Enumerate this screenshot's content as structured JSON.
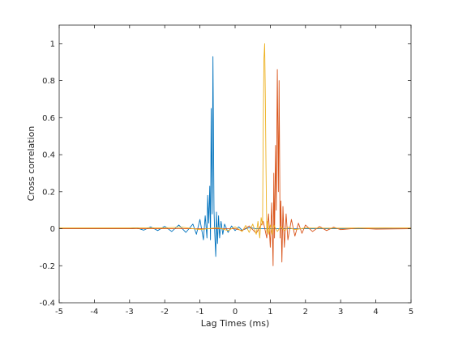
{
  "chart_data": {
    "type": "line",
    "title": "",
    "xlabel": "Lag Times (ms)",
    "ylabel": "Cross correlation",
    "xlim": [
      -5,
      5
    ],
    "ylim": [
      -0.4,
      1.1
    ],
    "xticks": [
      "-5",
      "-4",
      "-3",
      "-2",
      "-1",
      "0",
      "1",
      "2",
      "3",
      "4",
      "5"
    ],
    "yticks": [
      "-0.4",
      "-0.2",
      "0",
      "0.2",
      "0.4",
      "0.6",
      "0.8",
      "1"
    ],
    "grid": false,
    "box": true,
    "series_colors": [
      "#0072BD",
      "#D95319",
      "#EDB120"
    ],
    "series": [
      {
        "x": [
          -5,
          -3.0,
          -2.8,
          -2.6,
          -2.4,
          -2.2,
          -2.0,
          -1.8,
          -1.6,
          -1.4,
          -1.2,
          -1.1,
          -1.0,
          -0.9,
          -0.85,
          -0.8,
          -0.78,
          -0.75,
          -0.72,
          -0.7,
          -0.68,
          -0.65,
          -0.63,
          -0.6,
          -0.58,
          -0.55,
          -0.53,
          -0.5,
          -0.47,
          -0.44,
          -0.4,
          -0.35,
          -0.3,
          -0.2,
          -0.1,
          0.0,
          0.1,
          0.2,
          0.4,
          0.6,
          0.8,
          1.0,
          1.2,
          1.5,
          2.0,
          2.5,
          3.0,
          3.5,
          4.0,
          5
        ],
        "y": [
          0,
          0,
          0.005,
          -0.008,
          0.01,
          -0.01,
          0.013,
          -0.015,
          0.02,
          -0.02,
          0.025,
          -0.03,
          0.05,
          -0.06,
          0.07,
          -0.05,
          0.18,
          0.03,
          0.23,
          -0.06,
          0.65,
          0.08,
          0.93,
          0.1,
          -0.02,
          -0.15,
          0.09,
          -0.08,
          0.07,
          -0.05,
          0.04,
          -0.03,
          0.025,
          -0.02,
          0.015,
          -0.01,
          0.01,
          -0.008,
          0.006,
          0,
          0,
          0,
          0,
          0,
          0,
          0,
          0,
          0,
          0,
          0
        ]
      },
      {
        "x": [
          -5,
          0.0,
          0.2,
          0.4,
          0.6,
          0.8,
          0.9,
          0.95,
          1.0,
          1.04,
          1.08,
          1.1,
          1.12,
          1.15,
          1.17,
          1.2,
          1.23,
          1.25,
          1.28,
          1.3,
          1.33,
          1.36,
          1.4,
          1.45,
          1.5,
          1.6,
          1.7,
          1.8,
          1.9,
          2.0,
          2.2,
          2.4,
          2.6,
          2.8,
          3.0,
          3.5,
          4.0,
          5
        ],
        "y": [
          0,
          0,
          -0.01,
          0.015,
          -0.025,
          0.04,
          -0.05,
          0.08,
          -0.1,
          0.14,
          -0.2,
          0.3,
          -0.05,
          0.45,
          0.1,
          0.86,
          0.2,
          0.8,
          -0.05,
          0.15,
          -0.18,
          0.12,
          -0.1,
          0.08,
          -0.06,
          0.05,
          -0.04,
          0.03,
          -0.025,
          0.02,
          -0.015,
          0.012,
          -0.01,
          0.008,
          -0.005,
          0.003,
          -0.002,
          0
        ]
      },
      {
        "x": [
          -5,
          -2.0,
          -1.5,
          -1.0,
          -0.5,
          -0.2,
          0.0,
          0.2,
          0.3,
          0.4,
          0.5,
          0.6,
          0.65,
          0.7,
          0.74,
          0.78,
          0.8,
          0.82,
          0.84,
          0.86,
          0.88,
          0.9,
          0.92,
          0.95,
          1.0,
          1.05,
          1.1,
          1.2,
          1.3,
          1.4,
          1.5,
          1.7,
          2.0,
          2.5,
          3.0,
          3.5,
          4.0,
          4.5,
          5
        ],
        "y": [
          0.005,
          0.005,
          0.008,
          -0.005,
          0.006,
          -0.01,
          0.01,
          -0.015,
          0.018,
          -0.02,
          0.025,
          -0.03,
          0.04,
          -0.05,
          0.06,
          0.02,
          0.55,
          0.92,
          1.0,
          0.7,
          0.3,
          -0.02,
          0.04,
          -0.03,
          0.02,
          -0.03,
          0.02,
          -0.015,
          0.012,
          -0.01,
          0.008,
          -0.005,
          0.004,
          0.003,
          0.003,
          0.004,
          0.004,
          0.005,
          0.005
        ]
      }
    ]
  }
}
